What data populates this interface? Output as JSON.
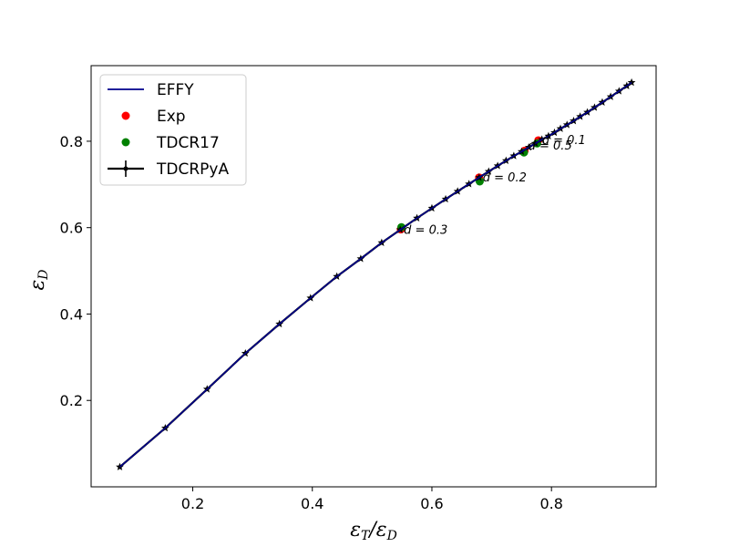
{
  "chart_data": {
    "type": "line",
    "xlabel": "ε_T/ε_D",
    "ylabel": "ε_D",
    "xlim": [
      0.03,
      0.975
    ],
    "ylim": [
      0.0,
      0.975
    ],
    "xticks": [
      0.2,
      0.4,
      0.6,
      0.8
    ],
    "yticks": [
      0.2,
      0.4,
      0.6,
      0.8
    ],
    "xtick_labels": [
      "0.2",
      "0.4",
      "0.6",
      "0.8"
    ],
    "ytick_labels": [
      "0.2",
      "0.4",
      "0.6",
      "0.8"
    ],
    "legend_position": "upper-left",
    "legend": [
      "EFFY",
      "Exp",
      "TDCR17",
      "TDCRPyA"
    ],
    "series": [
      {
        "name": "EFFY",
        "kind": "line",
        "color": "#00008b",
        "x": [
          0.078,
          0.154,
          0.224,
          0.288,
          0.345,
          0.397,
          0.441,
          0.481,
          0.516,
          0.547,
          0.575,
          0.6,
          0.623,
          0.643,
          0.662,
          0.679,
          0.695,
          0.71,
          0.724,
          0.737,
          0.75,
          0.762,
          0.773,
          0.784,
          0.795,
          0.805,
          0.815,
          0.826,
          0.837,
          0.848,
          0.86,
          0.872,
          0.885,
          0.899,
          0.913,
          0.926,
          0.934
        ],
        "y": [
          0.046,
          0.136,
          0.226,
          0.309,
          0.377,
          0.437,
          0.487,
          0.528,
          0.565,
          0.595,
          0.622,
          0.645,
          0.666,
          0.684,
          0.701,
          0.716,
          0.73,
          0.743,
          0.755,
          0.766,
          0.776,
          0.786,
          0.795,
          0.804,
          0.812,
          0.82,
          0.829,
          0.838,
          0.847,
          0.857,
          0.867,
          0.878,
          0.89,
          0.903,
          0.916,
          0.928,
          0.936
        ]
      },
      {
        "name": "Exp",
        "kind": "scatter",
        "color": "#ff0000",
        "x": [
          0.548,
          0.679,
          0.755,
          0.778
        ],
        "y": [
          0.596,
          0.716,
          0.778,
          0.802
        ]
      },
      {
        "name": "TDCR17",
        "kind": "scatter",
        "color": "#008000",
        "x": [
          0.549,
          0.68,
          0.754,
          0.776
        ],
        "y": [
          0.601,
          0.707,
          0.774,
          0.795
        ]
      },
      {
        "name": "TDCRPyA",
        "kind": "errorbar-line",
        "color": "#000000",
        "x": [
          0.078,
          0.154,
          0.224,
          0.288,
          0.345,
          0.397,
          0.441,
          0.481,
          0.516,
          0.547,
          0.575,
          0.6,
          0.623,
          0.643,
          0.662,
          0.679,
          0.695,
          0.71,
          0.724,
          0.737,
          0.75,
          0.762,
          0.773,
          0.784,
          0.795,
          0.805,
          0.815,
          0.826,
          0.837,
          0.848,
          0.86,
          0.872,
          0.885,
          0.899,
          0.913,
          0.926,
          0.934
        ],
        "y": [
          0.046,
          0.136,
          0.226,
          0.309,
          0.377,
          0.437,
          0.487,
          0.528,
          0.565,
          0.595,
          0.622,
          0.645,
          0.666,
          0.684,
          0.701,
          0.716,
          0.73,
          0.743,
          0.755,
          0.766,
          0.776,
          0.786,
          0.795,
          0.804,
          0.812,
          0.82,
          0.829,
          0.838,
          0.847,
          0.857,
          0.867,
          0.878,
          0.89,
          0.903,
          0.916,
          0.928,
          0.936
        ]
      }
    ],
    "annotations": [
      {
        "text": "d = 0.3",
        "x": 0.55,
        "y": 0.596
      },
      {
        "text": "d = 0.2",
        "x": 0.682,
        "y": 0.718
      },
      {
        "text": "d = 0.1",
        "x": 0.781,
        "y": 0.804
      },
      {
        "text": "d = 0.5",
        "x": 0.758,
        "y": 0.791
      }
    ]
  }
}
